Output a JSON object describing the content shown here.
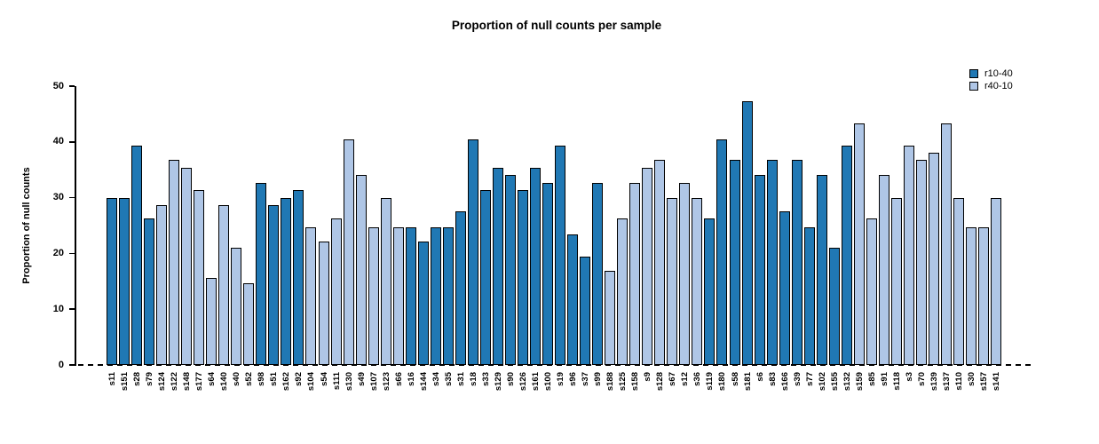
{
  "chart_data": {
    "type": "bar",
    "title": "Proportion of null counts per sample",
    "xlabel": "",
    "ylabel": "Proportion of null counts",
    "ylim": [
      0,
      50
    ],
    "yticks": [
      0,
      10,
      20,
      30,
      40,
      50
    ],
    "grid": false,
    "legend_position": "top-right",
    "baseline": {
      "value": 0,
      "style": "dashed",
      "color": "#000000"
    },
    "series": [
      {
        "name": "r10-40",
        "color": "#2078b4"
      },
      {
        "name": "r40-10",
        "color": "#afc6e6"
      }
    ],
    "bars": [
      {
        "label": "s11",
        "value": 30.0,
        "series": "r10-40"
      },
      {
        "label": "s151",
        "value": 30.0,
        "series": "r10-40"
      },
      {
        "label": "s28",
        "value": 39.3,
        "series": "r10-40"
      },
      {
        "label": "s79",
        "value": 26.2,
        "series": "r10-40"
      },
      {
        "label": "s124",
        "value": 28.7,
        "series": "r40-10"
      },
      {
        "label": "s122",
        "value": 36.8,
        "series": "r40-10"
      },
      {
        "label": "s148",
        "value": 35.3,
        "series": "r40-10"
      },
      {
        "label": "s177",
        "value": 31.4,
        "series": "r40-10"
      },
      {
        "label": "s64",
        "value": 15.6,
        "series": "r40-10"
      },
      {
        "label": "s140",
        "value": 28.7,
        "series": "r40-10"
      },
      {
        "label": "s40",
        "value": 21.0,
        "series": "r40-10"
      },
      {
        "label": "s52",
        "value": 14.6,
        "series": "r40-10"
      },
      {
        "label": "s98",
        "value": 32.7,
        "series": "r10-40"
      },
      {
        "label": "s51",
        "value": 28.7,
        "series": "r10-40"
      },
      {
        "label": "s162",
        "value": 30.0,
        "series": "r10-40"
      },
      {
        "label": "s92",
        "value": 31.4,
        "series": "r10-40"
      },
      {
        "label": "s104",
        "value": 24.7,
        "series": "r40-10"
      },
      {
        "label": "s54",
        "value": 22.2,
        "series": "r40-10"
      },
      {
        "label": "s111",
        "value": 26.2,
        "series": "r40-10"
      },
      {
        "label": "s130",
        "value": 40.5,
        "series": "r40-10"
      },
      {
        "label": "s49",
        "value": 34.0,
        "series": "r40-10"
      },
      {
        "label": "s107",
        "value": 24.7,
        "series": "r40-10"
      },
      {
        "label": "s123",
        "value": 30.0,
        "series": "r40-10"
      },
      {
        "label": "s66",
        "value": 24.7,
        "series": "r40-10"
      },
      {
        "label": "s16",
        "value": 24.7,
        "series": "r10-40"
      },
      {
        "label": "s144",
        "value": 22.2,
        "series": "r10-40"
      },
      {
        "label": "s34",
        "value": 24.7,
        "series": "r10-40"
      },
      {
        "label": "s35",
        "value": 24.7,
        "series": "r10-40"
      },
      {
        "label": "s31",
        "value": 27.5,
        "series": "r10-40"
      },
      {
        "label": "s18",
        "value": 40.5,
        "series": "r10-40"
      },
      {
        "label": "s33",
        "value": 31.4,
        "series": "r10-40"
      },
      {
        "label": "s129",
        "value": 35.3,
        "series": "r10-40"
      },
      {
        "label": "s90",
        "value": 34.0,
        "series": "r10-40"
      },
      {
        "label": "s126",
        "value": 31.4,
        "series": "r10-40"
      },
      {
        "label": "s161",
        "value": 35.3,
        "series": "r10-40"
      },
      {
        "label": "s100",
        "value": 32.7,
        "series": "r10-40"
      },
      {
        "label": "s19",
        "value": 39.3,
        "series": "r10-40"
      },
      {
        "label": "s96",
        "value": 23.4,
        "series": "r10-40"
      },
      {
        "label": "s37",
        "value": 19.5,
        "series": "r10-40"
      },
      {
        "label": "s99",
        "value": 32.7,
        "series": "r10-40"
      },
      {
        "label": "s188",
        "value": 16.8,
        "series": "r40-10"
      },
      {
        "label": "s125",
        "value": 26.2,
        "series": "r40-10"
      },
      {
        "label": "s158",
        "value": 32.7,
        "series": "r40-10"
      },
      {
        "label": "s9",
        "value": 35.3,
        "series": "r40-10"
      },
      {
        "label": "s128",
        "value": 36.8,
        "series": "r40-10"
      },
      {
        "label": "s67",
        "value": 30.0,
        "series": "r40-10"
      },
      {
        "label": "s12",
        "value": 32.7,
        "series": "r40-10"
      },
      {
        "label": "s36",
        "value": 30.0,
        "series": "r40-10"
      },
      {
        "label": "s119",
        "value": 26.2,
        "series": "r10-40"
      },
      {
        "label": "s180",
        "value": 40.5,
        "series": "r10-40"
      },
      {
        "label": "s58",
        "value": 36.8,
        "series": "r10-40"
      },
      {
        "label": "s181",
        "value": 47.3,
        "series": "r10-40"
      },
      {
        "label": "s6",
        "value": 34.0,
        "series": "r10-40"
      },
      {
        "label": "s83",
        "value": 36.8,
        "series": "r10-40"
      },
      {
        "label": "s166",
        "value": 27.5,
        "series": "r10-40"
      },
      {
        "label": "s39",
        "value": 36.8,
        "series": "r10-40"
      },
      {
        "label": "s77",
        "value": 24.7,
        "series": "r10-40"
      },
      {
        "label": "s102",
        "value": 34.0,
        "series": "r10-40"
      },
      {
        "label": "s155",
        "value": 21.0,
        "series": "r10-40"
      },
      {
        "label": "s132",
        "value": 39.3,
        "series": "r10-40"
      },
      {
        "label": "s159",
        "value": 43.3,
        "series": "r40-10"
      },
      {
        "label": "s85",
        "value": 26.2,
        "series": "r40-10"
      },
      {
        "label": "s91",
        "value": 34.0,
        "series": "r40-10"
      },
      {
        "label": "s118",
        "value": 30.0,
        "series": "r40-10"
      },
      {
        "label": "s3",
        "value": 39.3,
        "series": "r40-10"
      },
      {
        "label": "s70",
        "value": 36.8,
        "series": "r40-10"
      },
      {
        "label": "s139",
        "value": 38.0,
        "series": "r40-10"
      },
      {
        "label": "s137",
        "value": 43.3,
        "series": "r40-10"
      },
      {
        "label": "s110",
        "value": 30.0,
        "series": "r40-10"
      },
      {
        "label": "s30",
        "value": 24.7,
        "series": "r40-10"
      },
      {
        "label": "s157",
        "value": 24.7,
        "series": "r40-10"
      },
      {
        "label": "s141",
        "value": 30.0,
        "series": "r40-10"
      }
    ]
  }
}
